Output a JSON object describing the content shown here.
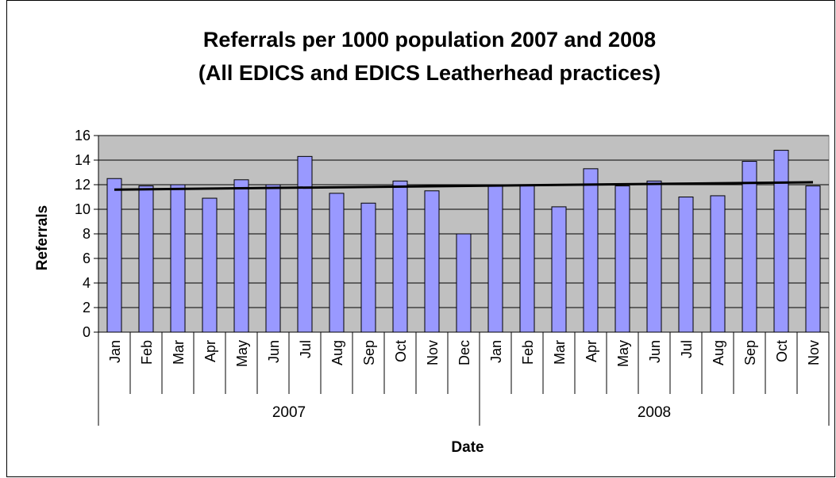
{
  "chart_data": {
    "type": "bar",
    "title_lines": [
      "Referrals per 1000 population 2007 and 2008",
      "(All EDICS and EDICS Leatherhead practices)"
    ],
    "xlabel": "Date",
    "ylabel": "Referrals",
    "ylim": [
      0,
      16
    ],
    "yticks": [
      0,
      2,
      4,
      6,
      8,
      10,
      12,
      14,
      16
    ],
    "grid": true,
    "legend": "none",
    "groups": [
      {
        "label": "2007",
        "categories": [
          "Jan",
          "Feb",
          "Mar",
          "Apr",
          "May",
          "Jun",
          "Jul",
          "Aug",
          "Sep",
          "Oct",
          "Nov",
          "Dec"
        ]
      },
      {
        "label": "2008",
        "categories": [
          "Jan",
          "Feb",
          "Mar",
          "Apr",
          "May",
          "Jun",
          "Jul",
          "Aug",
          "Sep",
          "Oct",
          "Nov"
        ]
      }
    ],
    "values": [
      12.5,
      11.9,
      12.0,
      10.9,
      12.4,
      12.0,
      14.3,
      11.3,
      10.5,
      12.3,
      11.5,
      8.0,
      11.9,
      11.9,
      10.2,
      13.3,
      11.9,
      12.3,
      11.0,
      11.1,
      13.9,
      14.8,
      11.9
    ],
    "trendline": {
      "type": "linear",
      "start": 11.6,
      "end": 12.2
    },
    "colors": {
      "bar_fill": "#9999ff",
      "bar_stroke": "#000000",
      "plot_bg": "#c0c0c0",
      "gridline": "#000000",
      "trendline": "#000000"
    }
  }
}
